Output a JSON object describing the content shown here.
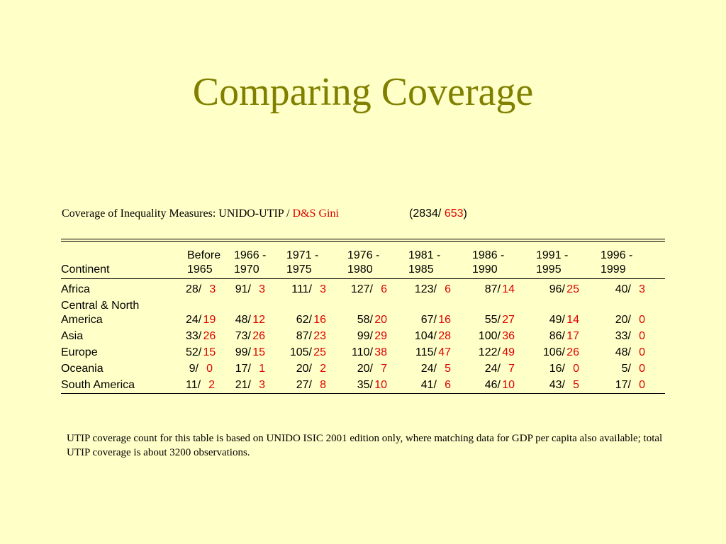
{
  "title": "Comparing Coverage",
  "caption": {
    "prefix": "Coverage of Inequality Measures: UNIDO-UTIP / ",
    "red_text": "D&S Gini",
    "total_open": "(2834/ ",
    "total_red": "653",
    "total_close": ")"
  },
  "table": {
    "headers": [
      {
        "line1": "",
        "line2": "Continent"
      },
      {
        "line1": "Before",
        "line2": "1965"
      },
      {
        "line1": "1966 -",
        "line2": "1970"
      },
      {
        "line1": "1971 -",
        "line2": "1975"
      },
      {
        "line1": "1976 -",
        "line2": "1980"
      },
      {
        "line1": "1981 -",
        "line2": "1985"
      },
      {
        "line1": "1986 -",
        "line2": "1990"
      },
      {
        "line1": "1991 -",
        "line2": "1995"
      },
      {
        "line1": "1996 -",
        "line2": "1999"
      }
    ],
    "rows": [
      {
        "name_line1": "Africa",
        "name_line2": "",
        "cells": [
          [
            "28/",
            "3"
          ],
          [
            "91/",
            "3"
          ],
          [
            "111/",
            "3"
          ],
          [
            "127/",
            "6"
          ],
          [
            "123/",
            "6"
          ],
          [
            "87/",
            "14"
          ],
          [
            "96/",
            "25"
          ],
          [
            "40/",
            "3"
          ]
        ]
      },
      {
        "name_line1": "Central & North",
        "name_line2": "America",
        "cells": [
          [
            "24/",
            "19"
          ],
          [
            "48/",
            "12"
          ],
          [
            "62/",
            "16"
          ],
          [
            "58/",
            "20"
          ],
          [
            "67/",
            "16"
          ],
          [
            "55/",
            "27"
          ],
          [
            "49/",
            "14"
          ],
          [
            "20/",
            "0"
          ]
        ]
      },
      {
        "name_line1": "Asia",
        "name_line2": "",
        "cells": [
          [
            "33/",
            "26"
          ],
          [
            "73/",
            "26"
          ],
          [
            "87/",
            "23"
          ],
          [
            "99/",
            "29"
          ],
          [
            "104/",
            "28"
          ],
          [
            "100/",
            "36"
          ],
          [
            "86/",
            "17"
          ],
          [
            "33/",
            "0"
          ]
        ]
      },
      {
        "name_line1": "Europe",
        "name_line2": "",
        "cells": [
          [
            "52/",
            "15"
          ],
          [
            "99/",
            "15"
          ],
          [
            "105/",
            "25"
          ],
          [
            "110/",
            "38"
          ],
          [
            "115/",
            "47"
          ],
          [
            "122/",
            "49"
          ],
          [
            "106/",
            "26"
          ],
          [
            "48/",
            "0"
          ]
        ]
      },
      {
        "name_line1": "Oceania",
        "name_line2": "",
        "cells": [
          [
            "9/",
            "0"
          ],
          [
            "17/",
            "1"
          ],
          [
            "20/",
            "2"
          ],
          [
            "20/",
            "7"
          ],
          [
            "24/",
            "5"
          ],
          [
            "24/",
            "7"
          ],
          [
            "16/",
            "0"
          ],
          [
            "5/",
            "0"
          ]
        ]
      },
      {
        "name_line1": "South America",
        "name_line2": "",
        "cells": [
          [
            "11/",
            "2"
          ],
          [
            "21/",
            "3"
          ],
          [
            "27/",
            "8"
          ],
          [
            "35/",
            "10"
          ],
          [
            "41/",
            "6"
          ],
          [
            "46/",
            "10"
          ],
          [
            "43/",
            "5"
          ],
          [
            "17/",
            "0"
          ]
        ]
      }
    ]
  },
  "note": "UTIP coverage count for this table is based on UNIDO ISIC 2001 edition only, where matching data for GDP per capita also available; total UTIP coverage is about 3200 observations.",
  "colors": {
    "background": "#ffffc8",
    "title": "#808000",
    "highlight": "#e00000"
  }
}
